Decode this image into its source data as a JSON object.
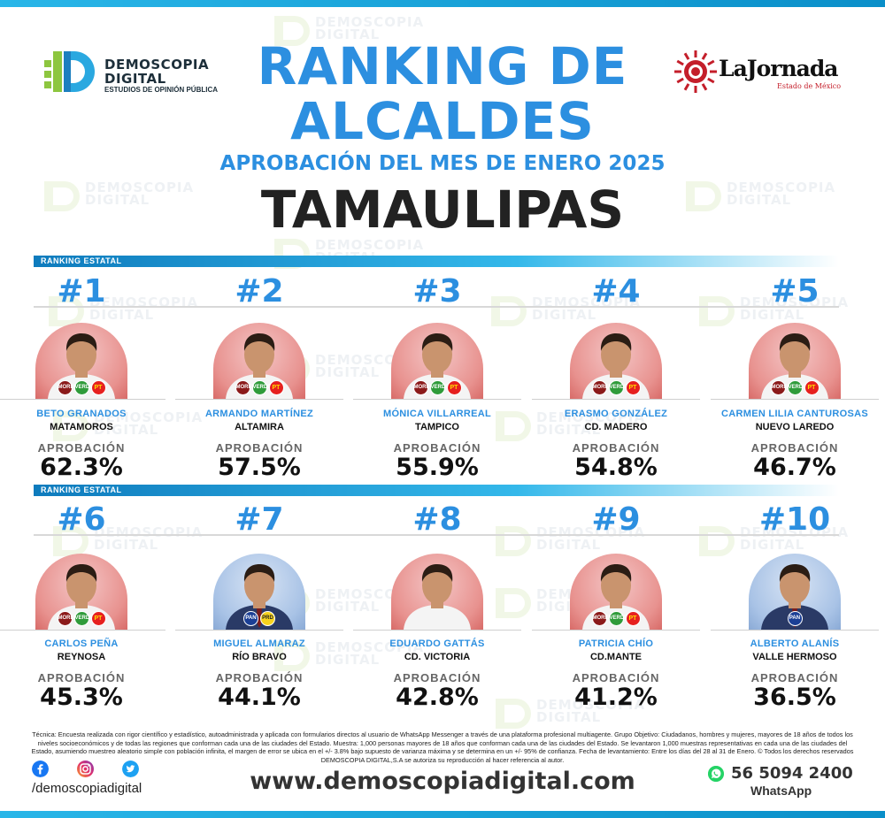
{
  "header": {
    "brand_logo": {
      "line1": "DEMOSCOPIA",
      "line2": "DIGITAL",
      "tagline": "ESTUDIOS DE OPINIÓN PÚBLICA"
    },
    "partner_logo": {
      "name": "LaJornada",
      "sub": "Estado de México"
    },
    "title_line1": "RANKING DE",
    "title_line2": "ALCALDES",
    "subtitle": "APROBACIÓN DEL MES DE ENERO 2025",
    "state": "TAMAULIPAS"
  },
  "section_label": "RANKING ESTATAL",
  "approval_label": "APROBACIÓN",
  "candidates": [
    {
      "rank": "#1",
      "name": "BETO GRANADOS",
      "city": "MATAMOROS",
      "approval": "62.3%",
      "approval_value": 62.3,
      "backdrop": "red",
      "parties": [
        "morena",
        "verde",
        "pt"
      ]
    },
    {
      "rank": "#2",
      "name": "ARMANDO MARTÍNEZ",
      "city": "ALTAMIRA",
      "approval": "57.5%",
      "approval_value": 57.5,
      "backdrop": "red",
      "parties": [
        "morena",
        "verde",
        "pt"
      ]
    },
    {
      "rank": "#3",
      "name": "MÓNICA VILLARREAL",
      "city": "TAMPICO",
      "approval": "55.9%",
      "approval_value": 55.9,
      "backdrop": "red",
      "parties": [
        "morena",
        "verde",
        "pt"
      ]
    },
    {
      "rank": "#4",
      "name": "ERASMO GONZÁLEZ",
      "city": "CD. MADERO",
      "approval": "54.8%",
      "approval_value": 54.8,
      "backdrop": "red",
      "parties": [
        "morena",
        "verde",
        "pt"
      ]
    },
    {
      "rank": "#5",
      "name": "CARMEN LILIA CANTUROSAS",
      "city": "NUEVO LAREDO",
      "approval": "46.7%",
      "approval_value": 46.7,
      "backdrop": "red",
      "parties": [
        "morena",
        "verde",
        "pt"
      ]
    },
    {
      "rank": "#6",
      "name": "CARLOS PEÑA",
      "city": "REYNOSA",
      "approval": "45.3%",
      "approval_value": 45.3,
      "backdrop": "red",
      "parties": [
        "morena",
        "verde",
        "pt"
      ]
    },
    {
      "rank": "#7",
      "name": "MIGUEL ALMARAZ",
      "city": "RÍO BRAVO",
      "approval": "44.1%",
      "approval_value": 44.1,
      "backdrop": "blue",
      "parties": [
        "pan",
        "prd"
      ]
    },
    {
      "rank": "#8",
      "name": "EDUARDO GATTÁS",
      "city": "CD. VICTORIA",
      "approval": "42.8%",
      "approval_value": 42.8,
      "backdrop": "red",
      "parties": []
    },
    {
      "rank": "#9",
      "name": "PATRICIA CHÍO",
      "city": "CD.MANTE",
      "approval": "41.2%",
      "approval_value": 41.2,
      "backdrop": "red",
      "parties": [
        "morena",
        "verde",
        "pt"
      ]
    },
    {
      "rank": "#10",
      "name": "ALBERTO ALANÍS",
      "city": "VALLE HERMOSO",
      "approval": "36.5%",
      "approval_value": 36.5,
      "backdrop": "blue",
      "parties": [
        "pan"
      ]
    }
  ],
  "party_labels": {
    "morena": "MORENA",
    "verde": "VERDE",
    "pt": "PT",
    "pan": "PAN",
    "prd": "PRD"
  },
  "footer": {
    "technical_note": "Técnica: Encuesta realizada con rigor científico y estadístico, autoadministrada y aplicada con formularios directos al usuario de WhatsApp Messenger a través de una plataforma profesional multiagente. Grupo Objetivo: Ciudadanos, hombres y mujeres, mayores de 18 años de todos los niveles socioeconómicos y de todas las regiones que conforman cada una de las ciudades del Estado. Muestra: 1,000 personas mayores de 18 años que conforman cada una de las ciudades del Estado. Se levantaron 1,000 muestras representativas en cada una de las ciudades del Estado, asumiendo muestreo aleatorio simple con población infinita, el margen de error se ubica en el +/- 3.8% bajo supuesto de varianza máxima y se determina en un +/- 95% de confianza. Fecha de levantamiento: Entre los días del 28 al 31 de Enero. © Todos los derechos reservados DEMOSCOPIA DIGITAL,S.A se autoriza su reproducción al hacer referencia al autor.",
    "social_handle": "/demoscopiadigital",
    "website": "www.demoscopiadigital.com",
    "phone": "56 5094 2400",
    "phone_label": "WhatsApp"
  },
  "colors": {
    "accent_blue": "#2c8fe0",
    "bar_blue": "#0e7bbd",
    "whatsapp_green": "#25d366"
  }
}
